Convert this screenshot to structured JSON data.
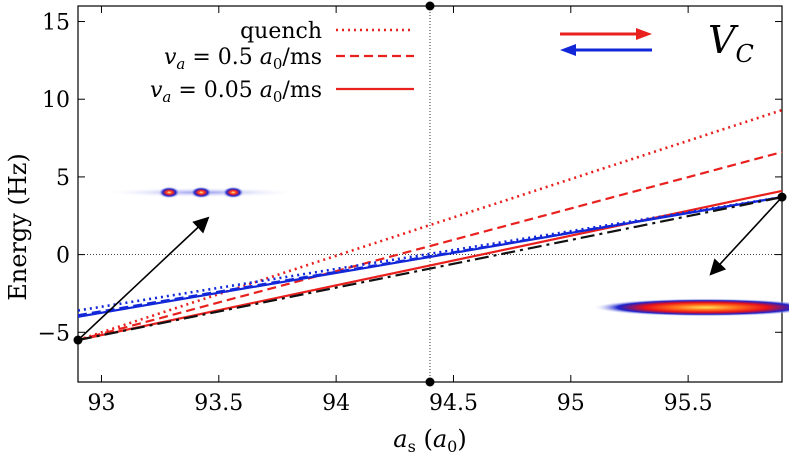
{
  "chart_data": {
    "type": "line",
    "xlabel": "a_s (a_0)",
    "xlabel_parts": {
      "var": "a",
      "var_sub": "s",
      "unit": "a",
      "unit_sub": "0"
    },
    "ylabel": "Energy (Hz)",
    "xlim": [
      92.9,
      95.9
    ],
    "ylim": [
      -8.2,
      16.0
    ],
    "xticks": [
      93,
      93.5,
      94,
      94.5,
      95,
      95.5
    ],
    "xtick_labels": [
      "93",
      "93.5",
      "94",
      "94.5",
      "95",
      "95.5"
    ],
    "yticks": [
      -5,
      0,
      5,
      10,
      15
    ],
    "ytick_labels": [
      "−5",
      "0",
      "5",
      "10",
      "15"
    ],
    "reference_lines": {
      "vertical_x": 94.4,
      "horizontal_y": 0
    },
    "panel_label": "V_C",
    "panel_label_parts": {
      "main": "V",
      "sub": "C"
    },
    "legend_placement": "top-center",
    "legend": [
      {
        "label": "quench",
        "style": "dotted",
        "color": "#e8201e"
      },
      {
        "label": "v_a = 0.5 a_0/ms",
        "style": "dashed",
        "color": "#e8201e"
      },
      {
        "label": "v_a = 0.05 a_0/ms",
        "style": "solid",
        "color": "#e8201e"
      }
    ],
    "series": [
      {
        "name": "quench",
        "color": "#e8201e",
        "style": "dotted",
        "x": [
          92.9,
          95.9
        ],
        "y": [
          -5.5,
          9.3
        ]
      },
      {
        "name": "v_a = 0.5 a_0/ms",
        "color": "#e8201e",
        "style": "dashed",
        "x": [
          92.9,
          95.9
        ],
        "y": [
          -5.5,
          6.6
        ]
      },
      {
        "name": "v_a = 0.05 a_0/ms",
        "color": "#e8201e",
        "style": "solid",
        "x": [
          92.9,
          95.9
        ],
        "y": [
          -5.5,
          4.1
        ]
      },
      {
        "color": "#1228d8",
        "style": "dotted",
        "x": [
          92.9,
          95.9
        ],
        "y": [
          -3.6,
          3.7
        ]
      },
      {
        "color": "#1228d8",
        "style": "dashed",
        "x": [
          92.9,
          95.9
        ],
        "y": [
          -3.9,
          3.7
        ]
      },
      {
        "color": "#1228d8",
        "style": "solid",
        "x": [
          92.9,
          95.9
        ],
        "y": [
          -4.0,
          3.7
        ]
      },
      {
        "color": "#111111",
        "style": "dashdot",
        "x": [
          92.9,
          95.9
        ],
        "y": [
          -5.5,
          3.7
        ]
      }
    ],
    "markers": [
      {
        "x": 92.9,
        "y": -5.5
      },
      {
        "x": 95.9,
        "y": 3.7
      },
      {
        "x": 94.4,
        "y": 16.0
      },
      {
        "x": 94.4,
        "y": -8.2
      }
    ],
    "arrows": [
      {
        "from": [
          92.9,
          -5.5
        ],
        "to": [
          93.45,
          2.3
        ]
      },
      {
        "from": [
          95.9,
          3.7
        ],
        "to": [
          95.6,
          -1.2
        ]
      }
    ],
    "direction_arrows": [
      {
        "direction": "right",
        "color": "#e8201e"
      },
      {
        "direction": "left",
        "color": "#1228d8"
      }
    ],
    "insets": [
      {
        "description": "three-peak density",
        "x_range": [
          93.0,
          93.85
        ],
        "y": 4.0
      },
      {
        "description": "single elongated density",
        "x_range": [
          95.35,
          95.8
        ],
        "y": -3.4
      }
    ]
  }
}
